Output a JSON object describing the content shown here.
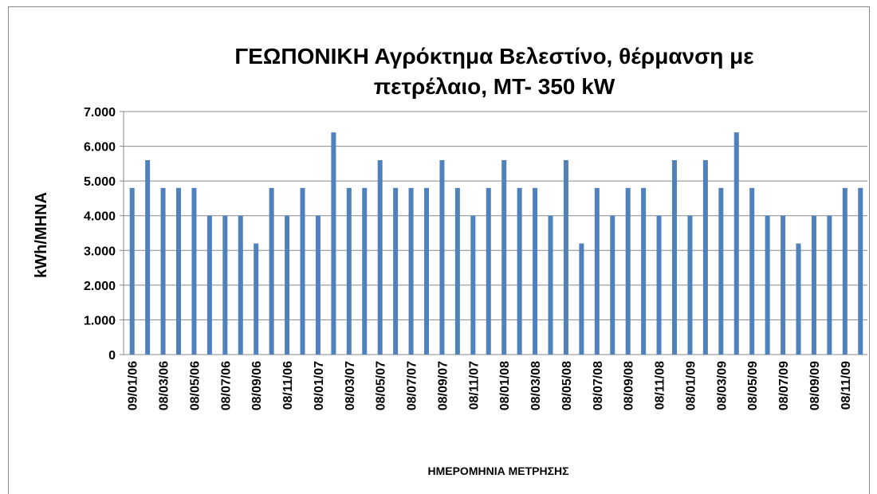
{
  "chart_data": {
    "type": "bar",
    "title": [
      "ΓΕΩΠΟΝΙΚΗ Αγρόκτημα Βελεστίνο, θέρμανση με",
      "πετρέλαιο, ΜΤ- 350 kW"
    ],
    "y_label": "kWh/MHNA",
    "x_label": "ΗΜΕΡΟΜΗΝΙΑ ΜΕΤΡΗΣΗΣ",
    "categories": [
      "09/01/06",
      null,
      "08/03/06",
      null,
      "08/05/06",
      null,
      "08/07/06",
      null,
      "08/09/06",
      null,
      "08/11/06",
      null,
      "08/01/07",
      null,
      "08/03/07",
      null,
      "08/05/07",
      null,
      "08/07/07",
      null,
      "08/09/07",
      null,
      "08/11/07",
      null,
      "08/01/08",
      null,
      "08/03/08",
      null,
      "08/05/08",
      null,
      "08/07/08",
      null,
      "08/09/08",
      null,
      "08/11/08",
      null,
      "08/01/09",
      null,
      "08/03/09",
      null,
      "08/05/09",
      null,
      "08/07/09",
      null,
      "08/09/09",
      null,
      "08/11/09",
      null
    ],
    "values": [
      4800,
      5600,
      4800,
      4800,
      4800,
      4000,
      4000,
      4000,
      3200,
      4800,
      4000,
      4800,
      4000,
      6400,
      4800,
      4800,
      5600,
      4800,
      4800,
      4800,
      5600,
      4800,
      4000,
      4800,
      5600,
      4800,
      4800,
      4000,
      5600,
      3200,
      4800,
      4000,
      4800,
      4800,
      4000,
      5600,
      4000,
      5600,
      4800,
      6400,
      4800,
      4000,
      4000,
      3200,
      4000,
      4000,
      4800,
      4800
    ],
    "color": "#4f81bd",
    "ylim": [
      0,
      7000
    ],
    "yticks": [
      0,
      {
        "value": 1000,
        "label": "1.000"
      },
      {
        "value": 2000,
        "label": "2.000"
      },
      {
        "value": 3000,
        "label": "3.000"
      },
      {
        "value": 4000,
        "label": "4.000"
      },
      {
        "value": 5000,
        "label": "5.000"
      },
      {
        "value": 6000,
        "label": "6.000"
      },
      {
        "value": 7000,
        "label": "7.000"
      }
    ],
    "grid": true
  }
}
